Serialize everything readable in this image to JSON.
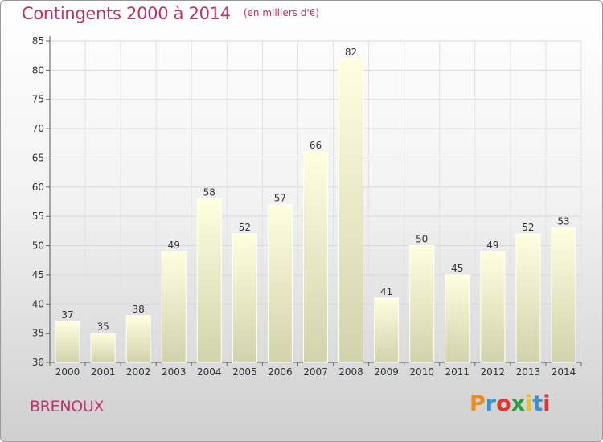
{
  "header": {
    "title": "Contingents 2000 à 2014",
    "subtitle": "(en milliers d'€)"
  },
  "footer": {
    "commune": "BRENOUX",
    "logo_text": "Proxiti",
    "logo_colors": [
      "#f08a1c",
      "#3a8fd8",
      "#e0332d",
      "#2d9b3a",
      "#f0c020",
      "#3a8fd8",
      "#e0332d"
    ]
  },
  "chart_data": {
    "type": "bar",
    "categories": [
      "2000",
      "2001",
      "2002",
      "2003",
      "2004",
      "2005",
      "2006",
      "2007",
      "2008",
      "2009",
      "2010",
      "2011",
      "2012",
      "2013",
      "2014"
    ],
    "values": [
      37,
      35,
      38,
      49,
      58,
      52,
      57,
      66,
      82,
      41,
      50,
      45,
      49,
      52,
      53
    ],
    "title": "Contingents 2000 à 2014",
    "xlabel": "",
    "ylabel": "",
    "ylim": [
      30,
      85
    ],
    "yticks": [
      30,
      35,
      40,
      45,
      50,
      55,
      60,
      65,
      70,
      75,
      80,
      85
    ],
    "grid": true,
    "bar_color_top": "#ffffe0",
    "bar_color_bottom": "#d2d2ac"
  }
}
